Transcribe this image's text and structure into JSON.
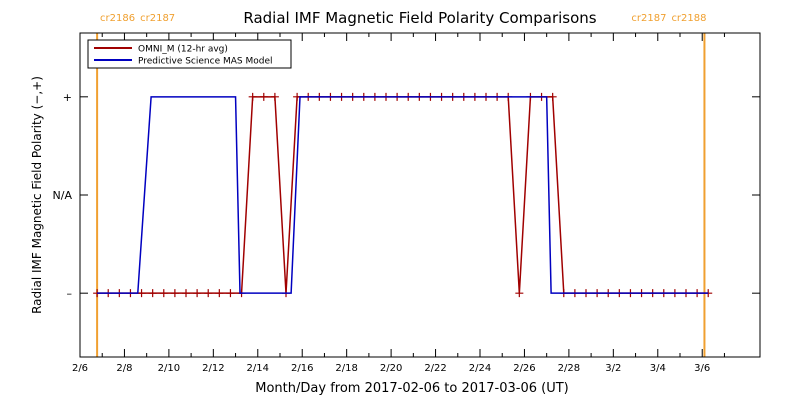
{
  "chart_data": {
    "type": "line",
    "title": "Radial IMF Magnetic Field Polarity Comparisons",
    "xlabel": "Month/Day from 2017-02-06 to 2017-03-06 (UT)",
    "ylabel": "Radial IMF Magnetic Field Polarity (−,+)",
    "x_units": "days since 2017-02-06",
    "xlim": [
      0,
      30.6
    ],
    "ylim": [
      -1.65,
      1.65
    ],
    "x_ticks": [
      {
        "x": 0,
        "label": "2/6"
      },
      {
        "x": 2,
        "label": "2/8"
      },
      {
        "x": 4,
        "label": "2/10"
      },
      {
        "x": 6,
        "label": "2/12"
      },
      {
        "x": 8,
        "label": "2/14"
      },
      {
        "x": 10,
        "label": "2/16"
      },
      {
        "x": 12,
        "label": "2/18"
      },
      {
        "x": 14,
        "label": "2/20"
      },
      {
        "x": 16,
        "label": "2/22"
      },
      {
        "x": 18,
        "label": "2/24"
      },
      {
        "x": 20,
        "label": "2/26"
      },
      {
        "x": 22,
        "label": "2/28"
      },
      {
        "x": 24,
        "label": "3/2"
      },
      {
        "x": 26,
        "label": "3/4"
      },
      {
        "x": 28,
        "label": "3/6"
      }
    ],
    "y_ticks": [
      {
        "y": 1,
        "label": "+"
      },
      {
        "y": 0,
        "label": "N/A"
      },
      {
        "y": -1,
        "label": "–"
      }
    ],
    "carrington_markers": [
      {
        "x": 0.77,
        "left": "cr2186",
        "right": "cr2187",
        "label_side": "left",
        "color": "#f0a030"
      },
      {
        "x": 28.1,
        "left": "cr2187",
        "right": "cr2188",
        "label_side": "right",
        "color": "#f0a030"
      }
    ],
    "series": [
      {
        "name": "OMNI_M (12-hr avg)",
        "color": "#a00000",
        "marker": "plus",
        "points": [
          [
            0.77,
            -1
          ],
          [
            1.27,
            -1
          ],
          [
            1.77,
            -1
          ],
          [
            2.27,
            -1
          ],
          [
            2.77,
            -1
          ],
          [
            3.27,
            -1
          ],
          [
            3.77,
            -1
          ],
          [
            4.27,
            -1
          ],
          [
            4.77,
            -1
          ],
          [
            5.27,
            -1
          ],
          [
            5.77,
            -1
          ],
          [
            6.27,
            -1
          ],
          [
            6.77,
            -1
          ],
          [
            7.27,
            -1
          ],
          [
            7.77,
            1
          ],
          [
            8.27,
            1
          ],
          [
            8.77,
            1
          ],
          [
            9.27,
            -1
          ],
          [
            9.77,
            1
          ],
          [
            10.27,
            1
          ],
          [
            10.77,
            1
          ],
          [
            11.27,
            1
          ],
          [
            11.77,
            1
          ],
          [
            12.27,
            1
          ],
          [
            12.77,
            1
          ],
          [
            13.27,
            1
          ],
          [
            13.77,
            1
          ],
          [
            14.27,
            1
          ],
          [
            14.77,
            1
          ],
          [
            15.27,
            1
          ],
          [
            15.77,
            1
          ],
          [
            16.27,
            1
          ],
          [
            16.77,
            1
          ],
          [
            17.27,
            1
          ],
          [
            17.77,
            1
          ],
          [
            18.27,
            1
          ],
          [
            18.77,
            1
          ],
          [
            19.27,
            1
          ],
          [
            19.77,
            -1
          ],
          [
            20.27,
            1
          ],
          [
            20.77,
            1
          ],
          [
            21.27,
            1
          ],
          [
            21.77,
            -1
          ],
          [
            22.27,
            -1
          ],
          [
            22.77,
            -1
          ],
          [
            23.27,
            -1
          ],
          [
            23.77,
            -1
          ],
          [
            24.27,
            -1
          ],
          [
            24.77,
            -1
          ],
          [
            25.27,
            -1
          ],
          [
            25.77,
            -1
          ],
          [
            26.27,
            -1
          ],
          [
            26.77,
            -1
          ],
          [
            27.27,
            -1
          ],
          [
            27.77,
            -1
          ],
          [
            28.27,
            -1
          ]
        ]
      },
      {
        "name": "Predictive Science MAS Model",
        "color": "#0000c0",
        "marker": "none",
        "points": [
          [
            0.77,
            -1
          ],
          [
            2.6,
            -1
          ],
          [
            3.2,
            1
          ],
          [
            7.0,
            1
          ],
          [
            7.2,
            -1
          ],
          [
            9.5,
            -1
          ],
          [
            9.9,
            1
          ],
          [
            21.0,
            1
          ],
          [
            21.2,
            -1
          ],
          [
            28.27,
            -1
          ]
        ]
      }
    ],
    "legend_position": "top-left"
  }
}
